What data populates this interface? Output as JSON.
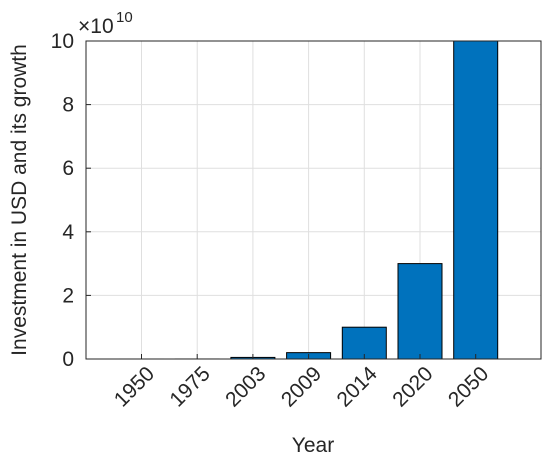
{
  "chart_data": {
    "type": "bar",
    "x_label": "Year",
    "y_label": "Investment in USD and its growth",
    "y_multiplier": "×10",
    "y_exponent": "10",
    "categories": [
      "1950",
      "1975",
      "2003",
      "2009",
      "2014",
      "2020",
      "2050"
    ],
    "values": [
      0.0002,
      0.001,
      0.05,
      0.2,
      1,
      3,
      10
    ],
    "color": "#0072bd",
    "ylim": [
      0,
      10
    ],
    "yticks": [
      0,
      2,
      4,
      6,
      8,
      10
    ],
    "grid": true
  }
}
